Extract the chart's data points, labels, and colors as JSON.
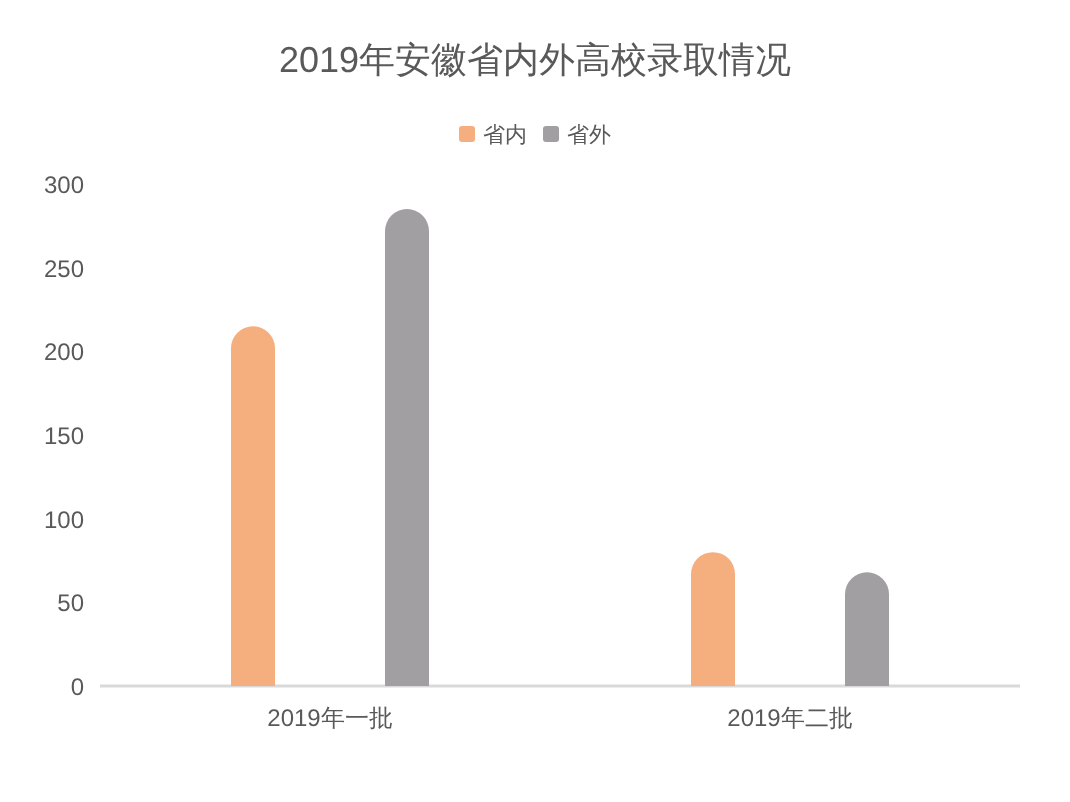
{
  "chart_data": {
    "type": "bar",
    "title": "2019年安徽省内外高校录取情况",
    "categories": [
      "2019年一批",
      "2019年二批"
    ],
    "series": [
      {
        "name": "省内",
        "color": "#f5ae7e",
        "values": [
          215,
          80
        ]
      },
      {
        "name": "省外",
        "color": "#a19fa1",
        "values": [
          285,
          68
        ]
      }
    ],
    "ylim": [
      0,
      300
    ],
    "yticks": [
      0,
      50,
      100,
      150,
      200,
      250,
      300
    ],
    "legend": "top"
  }
}
